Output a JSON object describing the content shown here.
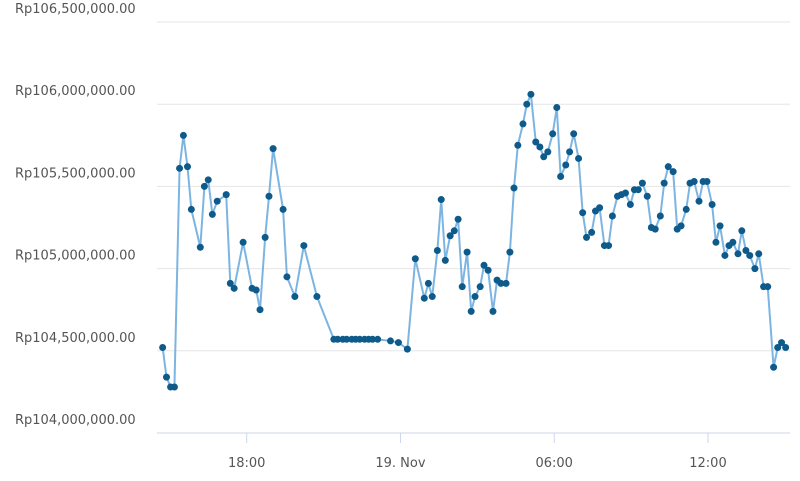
{
  "chart_data": {
    "type": "line",
    "x": [
      -9.28,
      -9.13,
      -8.97,
      -8.82,
      -8.62,
      -8.47,
      -8.31,
      -8.16,
      -7.81,
      -7.65,
      -7.5,
      -7.34,
      -7.15,
      -6.8,
      -6.64,
      -6.49,
      -6.14,
      -5.79,
      -5.63,
      -5.48,
      -5.28,
      -5.13,
      -4.97,
      -4.58,
      -4.43,
      -4.12,
      -3.77,
      -3.26,
      -2.6,
      -2.45,
      -2.25,
      -2.1,
      -1.9,
      -1.75,
      -1.59,
      -1.4,
      -1.24,
      -1.09,
      -0.89,
      -0.39,
      -0.08,
      0.27,
      0.58,
      0.93,
      1.09,
      1.24,
      1.44,
      1.59,
      1.75,
      1.94,
      2.1,
      2.25,
      2.41,
      2.6,
      2.76,
      2.91,
      3.11,
      3.26,
      3.42,
      3.61,
      3.77,
      3.92,
      4.12,
      4.27,
      4.43,
      4.58,
      4.78,
      4.93,
      5.09,
      5.28,
      5.44,
      5.59,
      5.75,
      5.94,
      6.1,
      6.25,
      6.45,
      6.6,
      6.76,
      6.95,
      7.11,
      7.26,
      7.46,
      7.61,
      7.77,
      7.96,
      8.12,
      8.27,
      8.47,
      8.62,
      8.78,
      8.97,
      9.13,
      9.28,
      9.44,
      9.63,
      9.79,
      9.94,
      10.14,
      10.29,
      10.45,
      10.64,
      10.8,
      10.95,
      11.15,
      11.3,
      11.46,
      11.65,
      11.81,
      11.96,
      12.16,
      12.31,
      12.47,
      12.66,
      12.82,
      12.97,
      13.17,
      13.32,
      13.48,
      13.63,
      13.83,
      13.98,
      14.17,
      14.33,
      14.56,
      14.72,
      14.87,
      15.03
    ],
    "series": [
      {
        "color": "#7cb5e2",
        "marker_color": "#0e5a8a",
        "values": [
          104520000,
          104340000,
          104280000,
          104280000,
          105610000,
          105810000,
          105620000,
          105360000,
          105130000,
          105500000,
          105540000,
          105330000,
          105410000,
          105450000,
          104910000,
          104880000,
          105160000,
          104880000,
          104870000,
          104750000,
          105190000,
          105440000,
          105730000,
          105360000,
          104950000,
          104830000,
          105140000,
          104830000,
          104570000,
          104570000,
          104570000,
          104570000,
          104570000,
          104570000,
          104570000,
          104570000,
          104570000,
          104570000,
          104570000,
          104560000,
          104550000,
          104510000,
          105060000,
          104820000,
          104910000,
          104830000,
          105110000,
          105420000,
          105050000,
          105200000,
          105230000,
          105300000,
          104890000,
          105100000,
          104740000,
          104830000,
          104890000,
          105020000,
          104990000,
          104740000,
          104930000,
          104910000,
          104910000,
          105100000,
          105490000,
          105750000,
          105880000,
          106000000,
          106060000,
          105770000,
          105740000,
          105680000,
          105710000,
          105820000,
          105980000,
          105560000,
          105630000,
          105710000,
          105820000,
          105670000,
          105340000,
          105190000,
          105220000,
          105350000,
          105370000,
          105140000,
          105140000,
          105320000,
          105440000,
          105450000,
          105460000,
          105390000,
          105480000,
          105480000,
          105520000,
          105440000,
          105250000,
          105240000,
          105320000,
          105520000,
          105620000,
          105590000,
          105240000,
          105260000,
          105360000,
          105520000,
          105530000,
          105410000,
          105530000,
          105530000,
          105390000,
          105160000,
          105260000,
          105080000,
          105140000,
          105160000,
          105090000,
          105230000,
          105110000,
          105080000,
          105000000,
          105090000,
          104890000,
          104890000,
          104400000,
          104520000,
          104550000,
          104520000
        ]
      }
    ],
    "xlim": [
      -9.5,
      15.2
    ],
    "xticks": [
      {
        "value": -6,
        "label": "18:00"
      },
      {
        "value": 0,
        "label": "19. Nov"
      },
      {
        "value": 6,
        "label": "06:00"
      },
      {
        "value": 12,
        "label": "12:00"
      }
    ],
    "ylim": [
      104000000,
      106500000
    ],
    "yticks": [
      {
        "value": 104000000,
        "label": "Rp104,000,000.00"
      },
      {
        "value": 104500000,
        "label": "Rp104,500,000.00"
      },
      {
        "value": 105000000,
        "label": "Rp105,000,000.00"
      },
      {
        "value": 105500000,
        "label": "Rp105,500,000.00"
      },
      {
        "value": 106000000,
        "label": "Rp106,000,000.00"
      },
      {
        "value": 106500000,
        "label": "Rp106,500,000.00"
      }
    ],
    "grid": true
  }
}
